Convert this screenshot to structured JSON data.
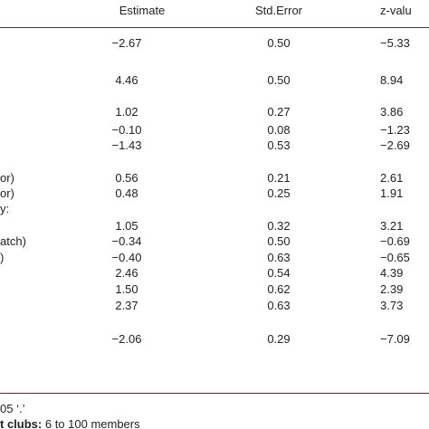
{
  "table": {
    "header": {
      "estimate": "Estimate",
      "std_error": "Std.Error",
      "z_value": "z-valu"
    },
    "rows": [
      {
        "estimate": "−2.67",
        "std_error": "0.50",
        "z_value": "−5.33"
      },
      {
        "estimate": "4.46",
        "std_error": "0.50",
        "z_value": "8.94"
      },
      {
        "estimate": "1.02",
        "std_error": "0.27",
        "z_value": "3.86"
      },
      {
        "estimate": "−0.10",
        "std_error": "0.08",
        "z_value": "−1.23"
      },
      {
        "estimate": "−1.43",
        "std_error": "0.53",
        "z_value": "−2.69"
      },
      {
        "label": "or)",
        "estimate": "0.56",
        "std_error": "0.21",
        "z_value": "2.61"
      },
      {
        "label": "or)",
        "estimate": "0.48",
        "std_error": "0.25",
        "z_value": "1.91"
      },
      {
        "label": "y:"
      },
      {
        "estimate": "1.05",
        "std_error": "0.32",
        "z_value": "3.21"
      },
      {
        "label": "atch)",
        "estimate": "−0.34",
        "std_error": "0.50",
        "z_value": "−0.69"
      },
      {
        "label": ")",
        "estimate": "−0.40",
        "std_error": "0.63",
        "z_value": "−0.65"
      },
      {
        "estimate": "2.46",
        "std_error": "0.54",
        "z_value": "4.39"
      },
      {
        "estimate": "1.50",
        "std_error": "0.62",
        "z_value": "2.39"
      },
      {
        "estimate": "2.37",
        "std_error": "0.63",
        "z_value": "3.73"
      },
      {
        "estimate": "−2.06",
        "std_error": "0.29",
        "z_value": "−7.09"
      }
    ]
  },
  "footnotes": {
    "significance": "05 ‘.’",
    "clubs_bold": "t clubs:",
    "clubs_text": " 6 to 100 members"
  }
}
